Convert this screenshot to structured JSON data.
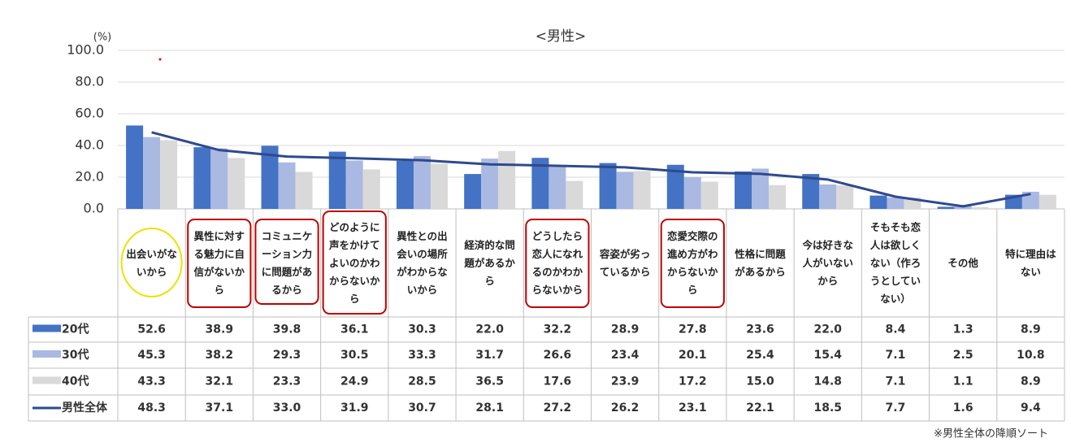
{
  "chart_data": {
    "type": "bar",
    "title": "<男性>",
    "y_unit_label": "(%)",
    "note": "※男性全体の降順ソート",
    "categories": [
      "出会いがないから",
      "異性に対する魅力に自信がないから",
      "コミュニケーション力に問題があるから",
      "どのように声をかけてよいのかわからないから",
      "異性との出会いの場所がわからないから",
      "経済的な問題があるから",
      "どうしたら恋人になれるのかわからないから",
      "容姿が劣っているから",
      "恋愛交際の進め方がわからないから",
      "性格に問題があるから",
      "今は好きな人がいないから",
      "そもそも恋人は欲しくない（作ろうとしていない）",
      "その他",
      "特に理由はない"
    ],
    "ylim": [
      0,
      100
    ],
    "yticks": [
      {
        "value": 0,
        "label": "0.0"
      },
      {
        "value": 20,
        "label": "20.0"
      },
      {
        "value": 40,
        "label": "40.0"
      },
      {
        "value": 60,
        "label": "60.0"
      },
      {
        "value": 80,
        "label": "80.0"
      },
      {
        "value": 100,
        "label": "100.0"
      }
    ],
    "grid": true,
    "series": [
      {
        "name": "20代",
        "type": "bar",
        "color": "#4472c4",
        "values": [
          52.6,
          38.9,
          39.8,
          36.1,
          30.3,
          22.0,
          32.2,
          28.9,
          27.8,
          23.6,
          22.0,
          8.4,
          1.3,
          8.9
        ],
        "value_labels": [
          "52.6",
          "38.9",
          "39.8",
          "36.1",
          "30.3",
          "22.0",
          "32.2",
          "28.9",
          "27.8",
          "23.6",
          "22.0",
          "8.4",
          "1.3",
          "8.9"
        ]
      },
      {
        "name": "30代",
        "type": "bar",
        "color": "#a9b9e2",
        "values": [
          45.3,
          38.2,
          29.3,
          30.5,
          33.3,
          31.7,
          26.6,
          23.4,
          20.1,
          25.4,
          15.4,
          7.1,
          2.5,
          10.8
        ],
        "value_labels": [
          "45.3",
          "38.2",
          "29.3",
          "30.5",
          "33.3",
          "31.7",
          "26.6",
          "23.4",
          "20.1",
          "25.4",
          "15.4",
          "7.1",
          "2.5",
          "10.8"
        ]
      },
      {
        "name": "40代",
        "type": "bar",
        "color": "#d9d9d9",
        "values": [
          43.3,
          32.1,
          23.3,
          24.9,
          28.5,
          36.5,
          17.6,
          23.9,
          17.2,
          15.0,
          14.8,
          7.1,
          1.1,
          8.9
        ],
        "value_labels": [
          "43.3",
          "32.1",
          "23.3",
          "24.9",
          "28.5",
          "36.5",
          "17.6",
          "23.9",
          "17.2",
          "15.0",
          "14.8",
          "7.1",
          "1.1",
          "8.9"
        ]
      },
      {
        "name": "男性全体",
        "type": "line",
        "color": "#2e4a8e",
        "values": [
          48.3,
          37.1,
          33.0,
          31.9,
          30.7,
          28.1,
          27.2,
          26.2,
          23.1,
          22.1,
          18.5,
          7.7,
          1.6,
          9.4
        ],
        "value_labels": [
          "48.3",
          "37.1",
          "33.0",
          "31.9",
          "30.7",
          "28.1",
          "27.2",
          "26.2",
          "23.1",
          "22.1",
          "18.5",
          "7.7",
          "1.6",
          "9.4"
        ]
      }
    ]
  }
}
